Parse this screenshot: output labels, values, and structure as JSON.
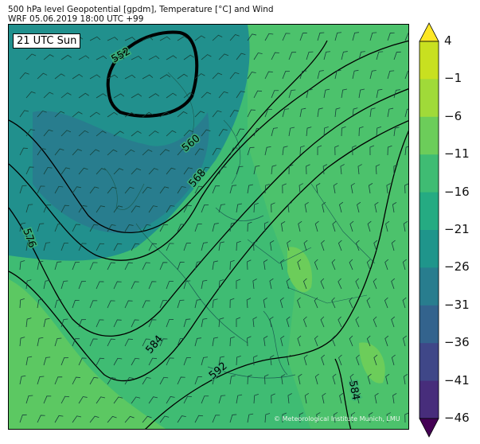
{
  "title": {
    "line1": "500 hPa level Geopotential [gpdm], Temperature [°C] and Wind",
    "line2": "WRF 05.06.2019 18:00 UTC +99"
  },
  "badge": "21 UTC Sun",
  "credit": "© Meteorological Institute Munich, LMU",
  "contour_labels": [
    "552",
    "560",
    "568",
    "576",
    "584",
    "592",
    "584"
  ],
  "colorbar": {
    "ticks": [
      "4",
      "−1",
      "−6",
      "−11",
      "−16",
      "−21",
      "−26",
      "−31",
      "−36",
      "−41",
      "−46"
    ],
    "colors": [
      "#fde725",
      "#c8e020",
      "#a0da39",
      "#6ccd5a",
      "#3fbc73",
      "#25ab82",
      "#1f958b",
      "#287d8e",
      "#33638d",
      "#3f4788",
      "#472d7b",
      "#440154"
    ]
  }
}
